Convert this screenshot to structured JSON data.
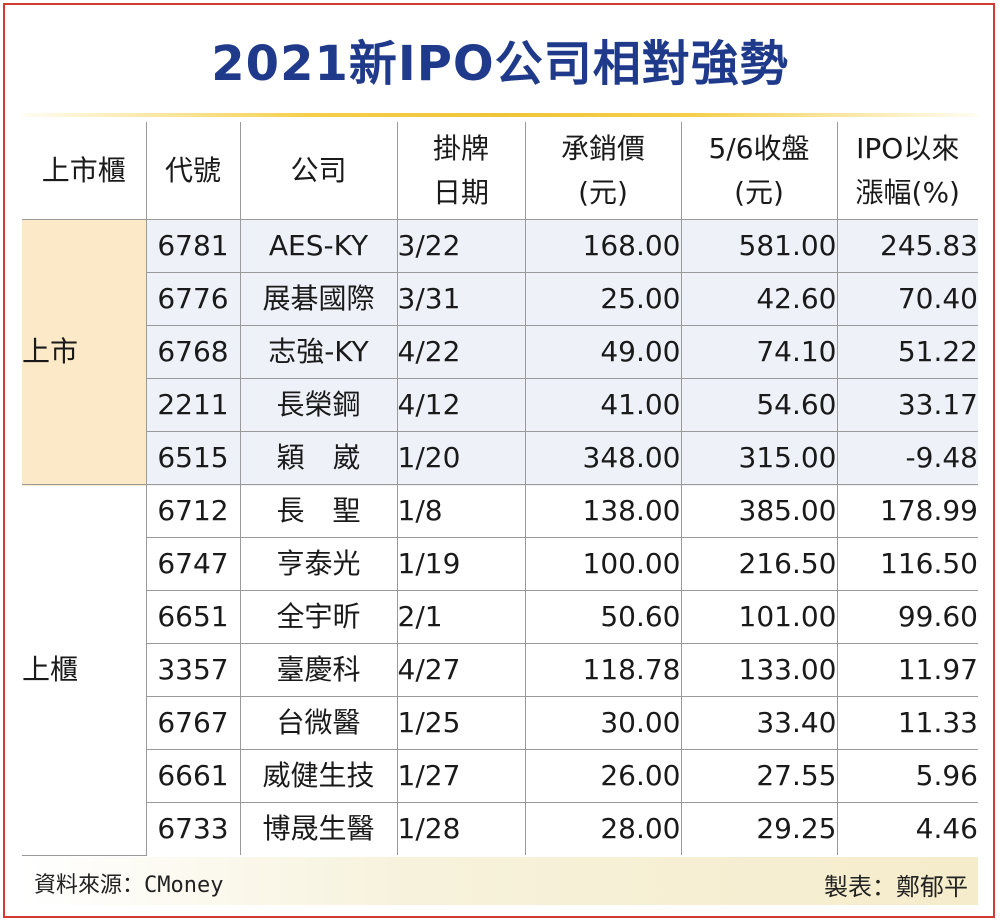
{
  "title": "2021新IPO公司相對強勢",
  "headers": {
    "market": "上市櫃",
    "code": "代號",
    "company": "公司",
    "listing_date": [
      "掛牌",
      "日期"
    ],
    "ipo_price": [
      "承銷價",
      "(元)"
    ],
    "close": [
      "5/6收盤",
      "(元)"
    ],
    "return": [
      "IPO以來",
      "漲幅(%)"
    ]
  },
  "groups": [
    {
      "market": "上市",
      "rows": [
        {
          "code": "6781",
          "company": "AES-KY",
          "date": "3/22",
          "price": "168.00",
          "close": "581.00",
          "ret": "245.83"
        },
        {
          "code": "6776",
          "company": "展碁國際",
          "date": "3/31",
          "price": "25.00",
          "close": "42.60",
          "ret": "70.40"
        },
        {
          "code": "6768",
          "company": "志強-KY",
          "date": "4/22",
          "price": "49.00",
          "close": "74.10",
          "ret": "51.22"
        },
        {
          "code": "2211",
          "company": "長榮鋼",
          "date": "4/12",
          "price": "41.00",
          "close": "54.60",
          "ret": "33.17"
        },
        {
          "code": "6515",
          "company": "穎　崴",
          "date": "1/20",
          "price": "348.00",
          "close": "315.00",
          "ret": "-9.48"
        }
      ]
    },
    {
      "market": "上櫃",
      "rows": [
        {
          "code": "6712",
          "company": "長　聖",
          "date": "1/8",
          "price": "138.00",
          "close": "385.00",
          "ret": "178.99"
        },
        {
          "code": "6747",
          "company": "亨泰光",
          "date": "1/19",
          "price": "100.00",
          "close": "216.50",
          "ret": "116.50"
        },
        {
          "code": "6651",
          "company": "全宇昕",
          "date": "2/1",
          "price": "50.60",
          "close": "101.00",
          "ret": "99.60"
        },
        {
          "code": "3357",
          "company": "臺慶科",
          "date": "4/27",
          "price": "118.78",
          "close": "133.00",
          "ret": "11.97"
        },
        {
          "code": "6767",
          "company": "台微醫",
          "date": "1/25",
          "price": "30.00",
          "close": "33.40",
          "ret": "11.33"
        },
        {
          "code": "6661",
          "company": "威健生技",
          "date": "1/27",
          "price": "26.00",
          "close": "27.55",
          "ret": "5.96"
        },
        {
          "code": "6733",
          "company": "博晟生醫",
          "date": "1/28",
          "price": "28.00",
          "close": "29.25",
          "ret": "4.46"
        }
      ]
    }
  ],
  "source": "資料來源：CMoney",
  "maker": "製表：鄭郁平",
  "colors": {
    "title": "#1f3a8a",
    "frame": "#d23a32",
    "listed_market_cell": "#fbe9c8",
    "listed_rows": "#eef2f8",
    "title_rule": "#f0c43a"
  }
}
